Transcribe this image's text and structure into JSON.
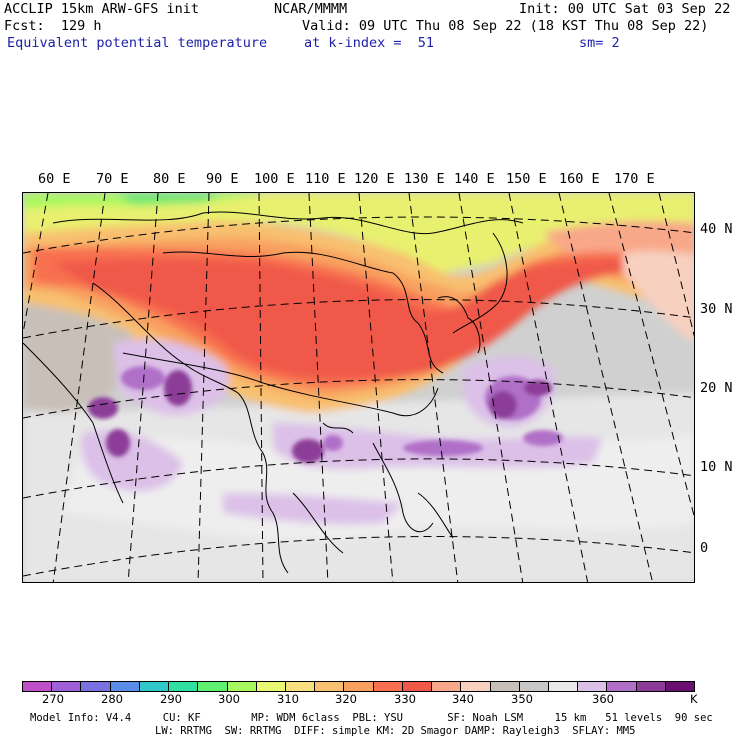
{
  "header": {
    "left_line1": "ACCLIP 15km ARW-GFS init",
    "left_line2": "Fcst:  129 h",
    "field_name": "Equivalent potential temperature",
    "center_line1": "NCAR/MMMM",
    "valid": "Valid: 09 UTC Thu 08 Sep 22 (18 KST Thu 08 Sep 22)",
    "init": "Init: 00 UTC Sat 03 Sep 22",
    "level": "at k-index =  51",
    "smoothing": "sm= 2"
  },
  "map": {
    "longitude_labels": [
      "60 E",
      "70 E",
      "80 E",
      "90 E",
      "100 E",
      "110 E",
      "120 E",
      "130 E",
      "140 E",
      "150 E",
      "160 E",
      "170 E"
    ],
    "latitude_labels": [
      "40 N",
      "30 N",
      "20 N",
      "10 N",
      "0"
    ],
    "projection": "lambert conformal"
  },
  "colorbar": {
    "colors": [
      "#c050c8",
      "#a060d8",
      "#7a70e0",
      "#5a8ce8",
      "#30c8c8",
      "#30e0a0",
      "#60f070",
      "#a8f860",
      "#e8f870",
      "#f8e080",
      "#f8c070",
      "#f8a060",
      "#f87050",
      "#f05848",
      "#f8a888",
      "#f8d0c0",
      "#c8c0b8",
      "#c8c8c8",
      "#e8e8e8",
      "#dcc0e8",
      "#b070c8",
      "#8c3c98",
      "#6a1070"
    ],
    "tick_labels": [
      "270",
      "280",
      "290",
      "300",
      "310",
      "320",
      "330",
      "340",
      "350",
      "360",
      "K"
    ]
  },
  "footer": {
    "line1": "Model Info: V4.4     CU: KF        MP: WDM 6class  PBL: YSU       SF: Noah LSM     15 km   51 levels  90 sec",
    "line2": "LW: RRTMG  SW: RRTMG  DIFF: simple KM: 2D Smagor DAMP: Rayleigh3  SFLAY: MM5"
  }
}
